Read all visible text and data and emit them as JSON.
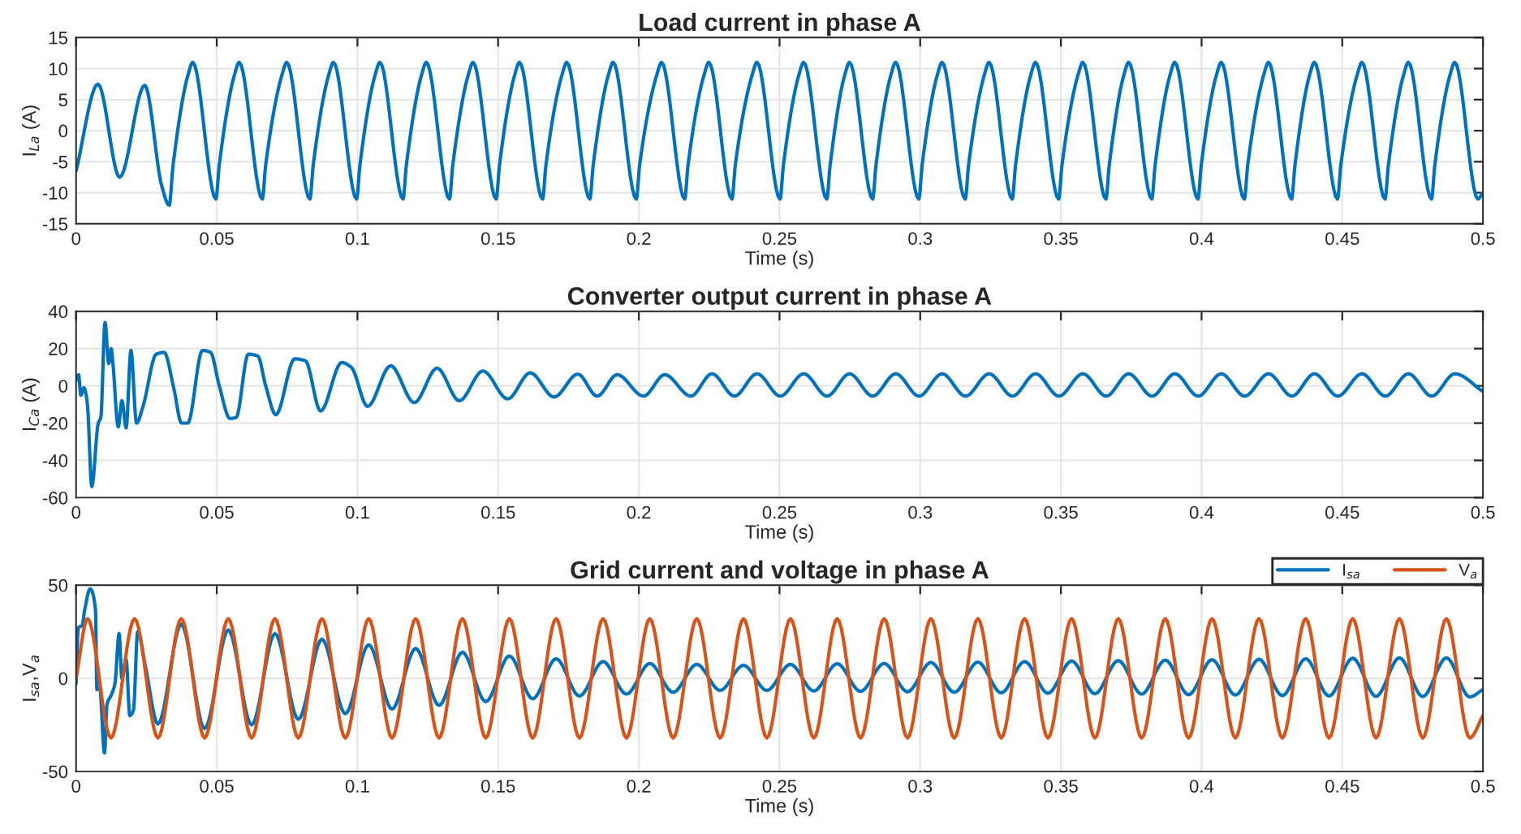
{
  "chart_data": [
    {
      "type": "line",
      "title": "Load current in phase A",
      "xlabel": "Time (s)",
      "ylabel": "I$_{La}$ (A)",
      "xlim": [
        0,
        0.5
      ],
      "ylim": [
        -15,
        15
      ],
      "xticks": [
        0,
        0.05,
        0.1,
        0.15,
        0.2,
        0.25,
        0.3,
        0.35,
        0.4,
        0.45,
        0.5
      ],
      "yticks": [
        -15,
        -10,
        -5,
        0,
        5,
        10,
        15
      ],
      "grid": true,
      "legend": false,
      "series": [
        {
          "color": "#0072bd",
          "x": [
            0,
            0.0078,
            0.0155,
            0.0244,
            0.0305,
            0.0331,
            0.0345,
            0.0398,
            0.0415,
            0.0497,
            0.0509,
            0.0563,
            0.058,
            0.0662,
            0.0674,
            0.0732,
            0.0749,
            0.0831,
            0.0843,
            0.0898,
            0.0915,
            0.0997,
            0.1009,
            0.1063,
            0.108,
            0.1162,
            0.1174,
            0.1228,
            0.1245,
            0.1327,
            0.1339,
            0.1394,
            0.1411,
            0.1493,
            0.1505,
            0.1559,
            0.1576,
            0.1658,
            0.167,
            0.1727,
            0.1744,
            0.1826,
            0.1838,
            0.1892,
            0.1909,
            0.1991,
            0.2003,
            0.2064,
            0.2081,
            0.2163,
            0.2175,
            0.2232,
            0.2249,
            0.2331,
            0.2343,
            0.2403,
            0.242,
            0.2502,
            0.2514,
            0.2569,
            0.2586,
            0.2668,
            0.268,
            0.2732,
            0.2749,
            0.2831,
            0.2843,
            0.2896,
            0.2913,
            0.2995,
            0.3007,
            0.3061,
            0.3078,
            0.316,
            0.3172,
            0.3228,
            0.3245,
            0.3327,
            0.3339,
            0.3393,
            0.341,
            0.3492,
            0.3504,
            0.3561,
            0.3578,
            0.366,
            0.3672,
            0.3724,
            0.3741,
            0.3823,
            0.3835,
            0.3888,
            0.3905,
            0.3987,
            0.3999,
            0.4053,
            0.407,
            0.4152,
            0.4164,
            0.4221,
            0.4238,
            0.432,
            0.4332,
            0.4384,
            0.4401,
            0.4483,
            0.4495,
            0.4553,
            0.457,
            0.4652,
            0.4664,
            0.4718,
            0.4735,
            0.4817,
            0.4829,
            0.4883,
            0.49,
            0.4982,
            0.5
          ],
          "values": [
            -6.5,
            7.5,
            -7.5,
            7.3,
            -9,
            -12,
            -5.5,
            9,
            11,
            -11,
            -5.5,
            9,
            11,
            -11,
            -5.5,
            9,
            11,
            -11,
            -5.5,
            9,
            11,
            -11,
            -5.5,
            9,
            11,
            -11,
            -5.5,
            9,
            11,
            -11,
            -5.5,
            9,
            11,
            -11,
            -5.5,
            9,
            11,
            -11,
            -5.5,
            9,
            11,
            -11,
            -5.5,
            9,
            11,
            -11,
            -5.5,
            9,
            11,
            -11,
            -5.5,
            9,
            11,
            -11,
            -5.5,
            9,
            11,
            -11,
            -5.5,
            9,
            11,
            -11,
            -5.5,
            9,
            11,
            -11,
            -5.5,
            9,
            11,
            -11,
            -5.5,
            9,
            11,
            -11,
            -5.5,
            9,
            11,
            -11,
            -5.5,
            9,
            11,
            -11,
            -5.5,
            9,
            11,
            -11,
            -5.5,
            9,
            11,
            -11,
            -5.5,
            9,
            11,
            -11,
            -5.5,
            9,
            11,
            -11,
            -5.5,
            9,
            11,
            -11,
            -5.5,
            9,
            11,
            -11,
            -5.5,
            9,
            11,
            -11,
            -5.5,
            9,
            11,
            -11,
            -5.5,
            9,
            11,
            -11,
            -10
          ]
        }
      ]
    },
    {
      "type": "line",
      "title": "Converter output current in phase A",
      "xlabel": "Time (s)",
      "ylabel": "I$_{Ca}$ (A)",
      "xlim": [
        0,
        0.5
      ],
      "ylim": [
        -60,
        40
      ],
      "xticks": [
        0,
        0.05,
        0.1,
        0.15,
        0.2,
        0.25,
        0.3,
        0.35,
        0.4,
        0.45,
        0.5
      ],
      "yticks": [
        -60,
        -40,
        -20,
        0,
        20,
        40
      ],
      "grid": true,
      "legend": false,
      "series": [
        {
          "color": "#0072bd",
          "x": [
            0,
            0.0009,
            0.0017,
            0.0028,
            0.0036,
            0.0041,
            0.0056,
            0.0079,
            0.0088,
            0.0103,
            0.0116,
            0.0125,
            0.0131,
            0.015,
            0.0163,
            0.0178,
            0.0195,
            0.0215,
            0.0238,
            0.0285,
            0.0313,
            0.0347,
            0.0375,
            0.0397,
            0.0449,
            0.0478,
            0.0509,
            0.0547,
            0.0569,
            0.0612,
            0.0646,
            0.0674,
            0.071,
            0.0777,
            0.0815,
            0.0869,
            0.0944,
            0.0978,
            0.1036,
            0.1118,
            0.1202,
            0.1283,
            0.1362,
            0.1446,
            0.1534,
            0.1614,
            0.1699,
            0.1783,
            0.1852,
            0.1923,
            0.2017,
            0.2092,
            0.2185,
            0.226,
            0.234,
            0.242,
            0.2503,
            0.2586,
            0.2669,
            0.2749,
            0.2831,
            0.2913,
            0.2996,
            0.3078,
            0.3161,
            0.3245,
            0.3328,
            0.341,
            0.3493,
            0.3578,
            0.3661,
            0.3741,
            0.3824,
            0.3905,
            0.3988,
            0.407,
            0.4153,
            0.4238,
            0.4321,
            0.4401,
            0.4484,
            0.457,
            0.4653,
            0.4735,
            0.4818,
            0.49,
            0.5
          ],
          "values": [
            3,
            6,
            -5,
            -1,
            -5,
            -11,
            -54,
            -20,
            -17,
            34,
            12,
            20,
            12,
            -22,
            -8,
            -22.5,
            19,
            -20,
            -11,
            17,
            18,
            -1,
            -20,
            -20,
            19,
            18,
            0,
            -17.5,
            -17,
            17,
            16,
            0,
            -15.5,
            14.5,
            13.5,
            -13.5,
            12.5,
            10,
            -11,
            10.8,
            -9,
            9.5,
            -8,
            8,
            -7,
            7,
            -6,
            6.3,
            -5.5,
            6,
            -5.5,
            6,
            -5.5,
            6.5,
            -5.5,
            6.5,
            -5.5,
            6.5,
            -5.5,
            6.5,
            -5.5,
            6.5,
            -5.5,
            6.5,
            -5.5,
            6.5,
            -5.5,
            6.5,
            -5.5,
            6.5,
            -5.5,
            6.5,
            -5.5,
            6.5,
            -5.5,
            6.5,
            -5.5,
            6.5,
            -5.5,
            6.5,
            -5.5,
            6.5,
            -5.5,
            6.5,
            -5.5,
            6.5,
            -3
          ]
        }
      ]
    },
    {
      "type": "line",
      "title": "Grid current and voltage in phase A",
      "xlabel": "Time (s)",
      "ylabel": "I$_{sa}$,V$_{a}$",
      "xlim": [
        0,
        0.5
      ],
      "ylim": [
        -50,
        50
      ],
      "xticks": [
        0,
        0.05,
        0.1,
        0.15,
        0.2,
        0.25,
        0.3,
        0.35,
        0.4,
        0.45,
        0.5
      ],
      "yticks": [
        -50,
        0,
        50
      ],
      "grid": true,
      "legend": "top right",
      "series": [
        {
          "name": "I$_{sa}$",
          "color": "#0072bd",
          "x": [
            0,
            0.0008,
            0.0022,
            0.0031,
            0.005,
            0.0069,
            0.0074,
            0.0084,
            0.0101,
            0.011,
            0.0125,
            0.0138,
            0.0153,
            0.0163,
            0.0178,
            0.0191,
            0.0204,
            0.0219,
            0.0247,
            0.0291,
            0.0374,
            0.0457,
            0.0541,
            0.0624,
            0.0707,
            0.079,
            0.0874,
            0.0957,
            0.104,
            0.1123,
            0.1207,
            0.129,
            0.1373,
            0.1456,
            0.154,
            0.1623,
            0.1706,
            0.1789,
            0.1873,
            0.1956,
            0.2039,
            0.2122,
            0.2206,
            0.2289,
            0.2372,
            0.2455,
            0.2539,
            0.2622,
            0.2705,
            0.2788,
            0.2872,
            0.2955,
            0.3038,
            0.3121,
            0.3205,
            0.3288,
            0.3371,
            0.3454,
            0.3538,
            0.3621,
            0.3704,
            0.3787,
            0.3871,
            0.3954,
            0.4037,
            0.412,
            0.4204,
            0.4287,
            0.437,
            0.4453,
            0.4537,
            0.462,
            0.4703,
            0.4786,
            0.487,
            0.4953,
            0.5
          ],
          "values": [
            -3,
            27,
            28.5,
            37,
            48,
            37,
            -6,
            -5,
            -40,
            -14,
            -9,
            -3,
            24,
            0,
            10,
            -20,
            -17,
            25,
            6,
            -24.5,
            29,
            -27,
            26,
            -25,
            24,
            -22,
            21,
            -19,
            18,
            -16.5,
            16,
            -14.5,
            14,
            -12.5,
            12,
            -11,
            10.5,
            -9.5,
            9,
            -8.5,
            8,
            -7.5,
            7.5,
            -6.5,
            7,
            -6.5,
            7.5,
            -6.8,
            7.8,
            -7,
            8,
            -7.2,
            8.5,
            -7.5,
            8.7,
            -7.8,
            9,
            -8,
            9.3,
            -8.3,
            9.5,
            -8.5,
            9.8,
            -8.8,
            10,
            -9,
            10.2,
            -9.3,
            10.5,
            -9.5,
            10.8,
            -9.7,
            11,
            -9.8,
            11,
            -10,
            -6
          ]
        },
        {
          "name": "V$_{a}$",
          "color": "#d95319",
          "x": [
            0,
            0.0041,
            0.0124,
            0.0208,
            0.0291,
            0.0374,
            0.0457,
            0.0541,
            0.0624,
            0.0707,
            0.079,
            0.0874,
            0.0957,
            0.104,
            0.1123,
            0.1207,
            0.129,
            0.1373,
            0.1456,
            0.154,
            0.1623,
            0.1706,
            0.1789,
            0.1873,
            0.1956,
            0.2039,
            0.2122,
            0.2206,
            0.2289,
            0.2372,
            0.2455,
            0.2539,
            0.2622,
            0.2705,
            0.2788,
            0.2872,
            0.2955,
            0.3038,
            0.3121,
            0.3205,
            0.3288,
            0.3371,
            0.3454,
            0.3538,
            0.3621,
            0.3704,
            0.3787,
            0.3871,
            0.3954,
            0.4037,
            0.412,
            0.4204,
            0.4287,
            0.437,
            0.4453,
            0.4537,
            0.462,
            0.4703,
            0.4786,
            0.487,
            0.4953,
            0.5
          ],
          "values": [
            0,
            32,
            -32,
            32,
            -32,
            32,
            -32,
            32,
            -32,
            32,
            -32,
            32,
            -32,
            32,
            -32,
            32,
            -32,
            32,
            -32,
            32,
            -32,
            32,
            -32,
            32,
            -32,
            32,
            -32,
            32,
            -32,
            32,
            -32,
            32,
            -32,
            32,
            -32,
            32,
            -32,
            32,
            -32,
            32,
            -32,
            32,
            -32,
            32,
            -32,
            32,
            -32,
            32,
            -32,
            32,
            -32,
            32,
            -32,
            32,
            -32,
            32,
            -32,
            32,
            -32,
            32,
            -32,
            -20
          ]
        }
      ]
    }
  ]
}
